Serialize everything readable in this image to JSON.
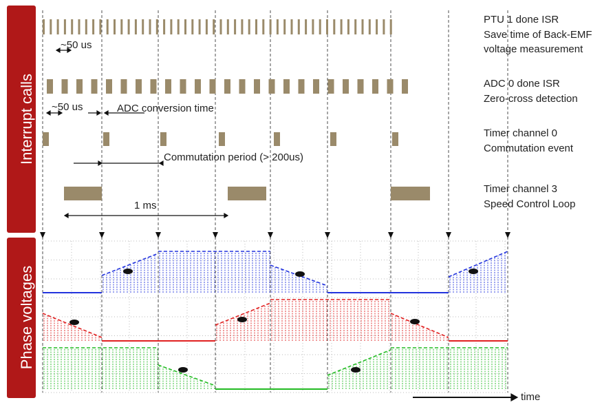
{
  "side_labels": [
    "Interrupt calls",
    "Phase voltages"
  ],
  "rows": [
    {
      "lines": [
        "PTU 1 done ISR",
        "Save time of Back-EMF",
        "voltage measurement"
      ]
    },
    {
      "lines": [
        "ADC 0 done ISR",
        "Zero-cross detection"
      ]
    },
    {
      "lines": [
        "Timer channel 0",
        "Commutation event"
      ]
    },
    {
      "lines": [
        "Timer channel 3",
        "Speed Control Loop"
      ]
    }
  ],
  "annotations": [
    "~50 us",
    "~50 us",
    "ADC conversion time",
    "Commutation period (> 200us)",
    "1 ms"
  ],
  "axis_label": "time"
}
